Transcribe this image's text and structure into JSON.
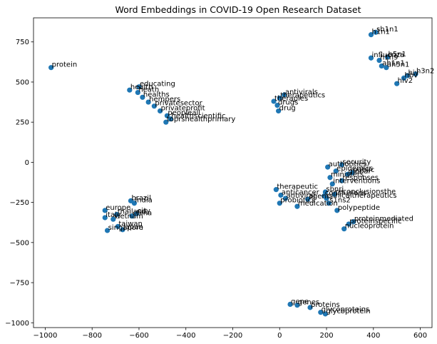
{
  "chart_data": {
    "type": "scatter",
    "title": "Word Embeddings in COVID-19 Open Research Dataset",
    "xlabel": "",
    "ylabel": "",
    "xlim": [
      -1050,
      650
    ],
    "ylim": [
      -1030,
      900
    ],
    "xticks": [
      -1000,
      -800,
      -600,
      -400,
      -200,
      0,
      200,
      400,
      600
    ],
    "yticks": [
      -1000,
      -750,
      -500,
      -250,
      0,
      250,
      500,
      750
    ],
    "xtick_labels": [
      "−1000",
      "−800",
      "−600",
      "−400",
      "−200",
      "0",
      "200",
      "400",
      "600"
    ],
    "ytick_labels": [
      "−1000",
      "−750",
      "−500",
      "−250",
      "0",
      "250",
      "500",
      "750"
    ],
    "grid": false,
    "marker_color": "#1f77b4",
    "points": [
      {
        "label": "protein",
        "x": -975,
        "y": 590
      },
      {
        "label": "educating",
        "x": -600,
        "y": 470
      },
      {
        "label": "health",
        "x": -640,
        "y": 450
      },
      {
        "label": "heath",
        "x": -605,
        "y": 435
      },
      {
        "label": "healths",
        "x": -585,
        "y": 405
      },
      {
        "label": "hempers",
        "x": -560,
        "y": 375
      },
      {
        "label": "privatesector",
        "x": -535,
        "y": 350
      },
      {
        "label": "privateprofit",
        "x": -510,
        "y": 320
      },
      {
        "label": "peopleall",
        "x": -480,
        "y": 290
      },
      {
        "label": "healthscientific",
        "x": -465,
        "y": 270
      },
      {
        "label": "toprshealthprimary",
        "x": -485,
        "y": 250
      },
      {
        "label": "antivirals",
        "x": 20,
        "y": 420
      },
      {
        "label": "therapeutics",
        "x": 0,
        "y": 400
      },
      {
        "label": "therapies",
        "x": -25,
        "y": 380
      },
      {
        "label": "drugs",
        "x": -10,
        "y": 355
      },
      {
        "label": "drug",
        "x": -5,
        "y": 320
      },
      {
        "label": "h1n1",
        "x": 390,
        "y": 795
      },
      {
        "label": "sh1n1",
        "x": 410,
        "y": 810
      },
      {
        "label": "influenza",
        "x": 390,
        "y": 650
      },
      {
        "label": "h5n1",
        "x": 460,
        "y": 655
      },
      {
        "label": "h1n9",
        "x": 425,
        "y": 635
      },
      {
        "label": "ah1n1",
        "x": 435,
        "y": 600
      },
      {
        "label": "ah5n1",
        "x": 455,
        "y": 590
      },
      {
        "label": "h3n2",
        "x": 580,
        "y": 550
      },
      {
        "label": "hiv",
        "x": 545,
        "y": 540
      },
      {
        "label": "hbv",
        "x": 530,
        "y": 525
      },
      {
        "label": "hiv2",
        "x": 500,
        "y": 490
      },
      {
        "label": "security",
        "x": 265,
        "y": -15
      },
      {
        "label": "authorities",
        "x": 205,
        "y": -30
      },
      {
        "label": "epidemics",
        "x": 240,
        "y": -55
      },
      {
        "label": "public",
        "x": 310,
        "y": -65
      },
      {
        "label": "global",
        "x": 290,
        "y": -75
      },
      {
        "label": "ministers",
        "x": 215,
        "y": -95
      },
      {
        "label": "responses",
        "x": 265,
        "y": -115
      },
      {
        "label": "interventions",
        "x": 225,
        "y": -135
      },
      {
        "label": "therapeutic",
        "x": -15,
        "y": -170
      },
      {
        "label": "sbnri",
        "x": 195,
        "y": -185
      },
      {
        "label": "anticancer",
        "x": 5,
        "y": -205
      },
      {
        "label": "conclusions",
        "x": 190,
        "y": -210
      },
      {
        "label": "reconclusionsthe",
        "x": 235,
        "y": -200
      },
      {
        "label": "antiviral",
        "x": 25,
        "y": -225
      },
      {
        "label": "clinicaltherapeutics",
        "x": 200,
        "y": -225
      },
      {
        "label": "agents",
        "x": 120,
        "y": -230
      },
      {
        "label": "probiotics",
        "x": 0,
        "y": -255
      },
      {
        "label": "s1ns2",
        "x": 210,
        "y": -255
      },
      {
        "label": "medication",
        "x": 75,
        "y": -275
      },
      {
        "label": "polypeptide",
        "x": 245,
        "y": -300
      },
      {
        "label": "proteinmediated",
        "x": 315,
        "y": -370
      },
      {
        "label": "proteinspecific",
        "x": 295,
        "y": -385
      },
      {
        "label": "nucleoprotein",
        "x": 275,
        "y": -415
      },
      {
        "label": "brazil",
        "x": -635,
        "y": -240
      },
      {
        "label": "india",
        "x": -620,
        "y": -255
      },
      {
        "label": "europe",
        "x": -745,
        "y": -300
      },
      {
        "label": "thailand",
        "x": -695,
        "y": -325
      },
      {
        "label": "city",
        "x": -610,
        "y": -320
      },
      {
        "label": "china",
        "x": -630,
        "y": -335
      },
      {
        "label": "italy",
        "x": -745,
        "y": -345
      },
      {
        "label": "vietnam",
        "x": -710,
        "y": -355
      },
      {
        "label": "taiwan",
        "x": -690,
        "y": -400
      },
      {
        "label": "japan",
        "x": -670,
        "y": -420
      },
      {
        "label": "singapore",
        "x": -735,
        "y": -425
      },
      {
        "label": "gene",
        "x": 45,
        "y": -885
      },
      {
        "label": "genes",
        "x": 75,
        "y": -890
      },
      {
        "label": "proteins",
        "x": 130,
        "y": -905
      },
      {
        "label": "glycoproteins",
        "x": 175,
        "y": -935
      },
      {
        "label": "glycoprotein",
        "x": 195,
        "y": -945
      }
    ]
  }
}
